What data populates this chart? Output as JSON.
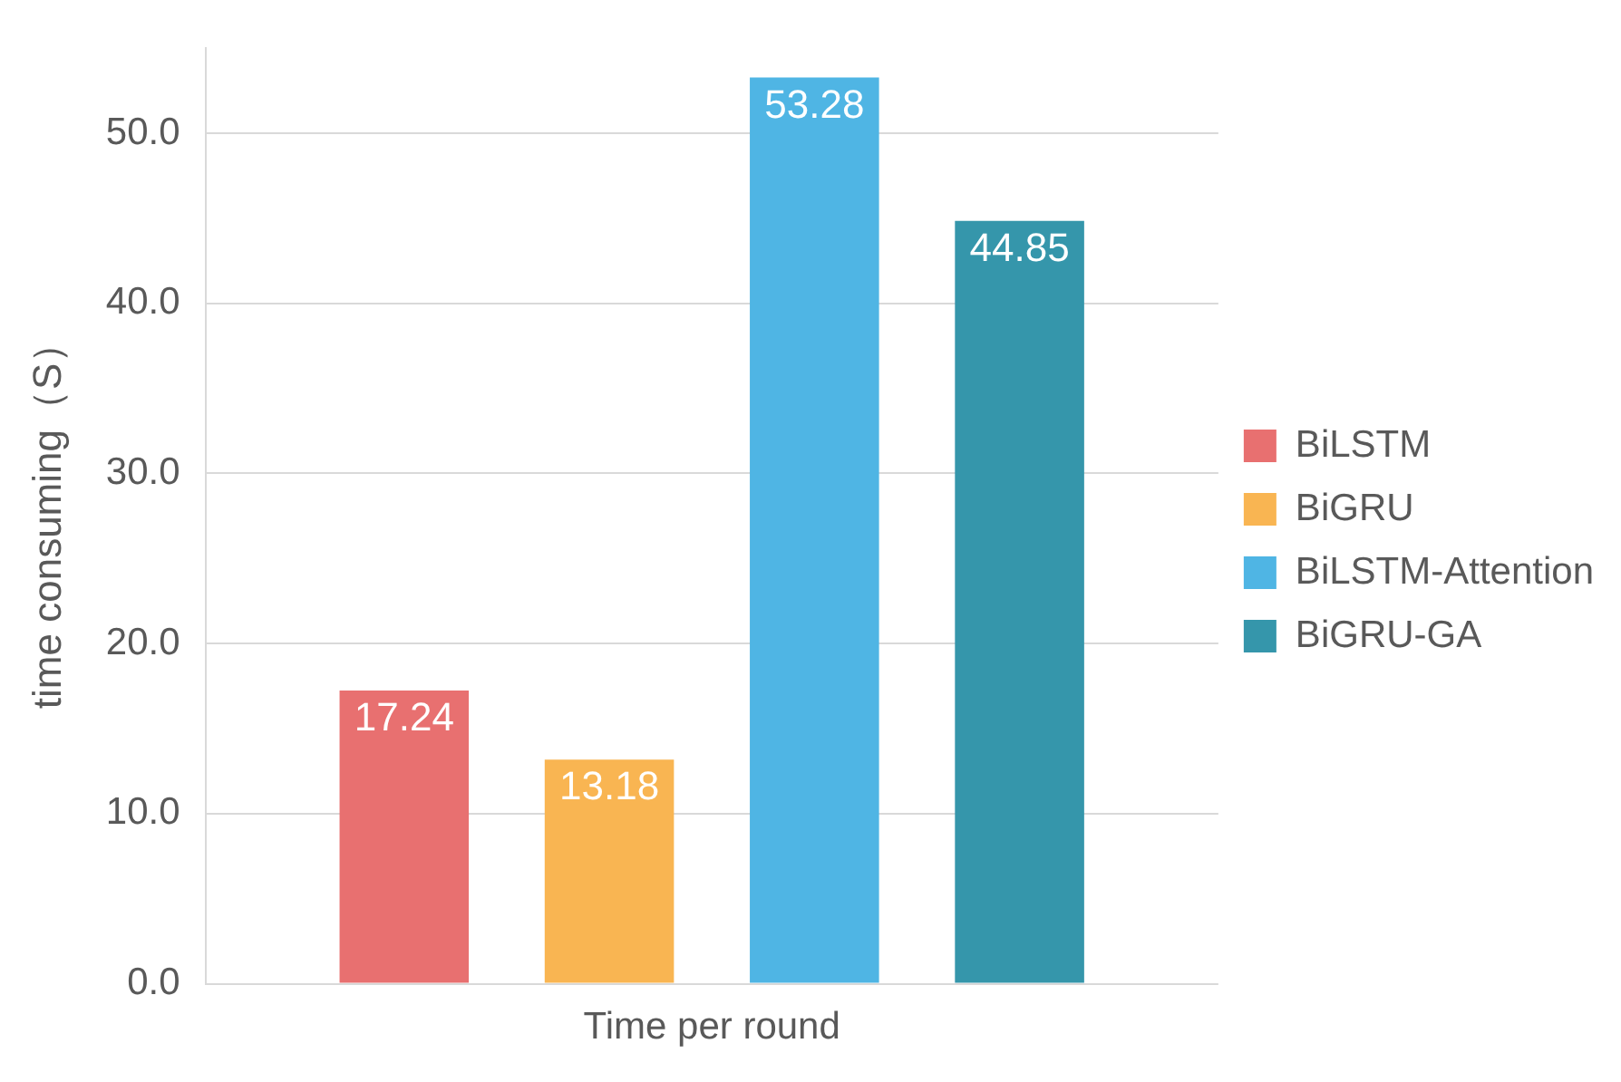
{
  "chart_data": {
    "type": "bar",
    "ylabel": "time consuming（S）",
    "categories": [
      "Time per round"
    ],
    "series": [
      {
        "name": "BiLSTM",
        "color": "#e87070",
        "values": [
          17.24
        ]
      },
      {
        "name": "BiGRU",
        "color": "#f9b552",
        "values": [
          13.18
        ]
      },
      {
        "name": "BiLSTM-Attention",
        "color": "#4fb5e4",
        "values": [
          53.28
        ]
      },
      {
        "name": "BiGRU-GA",
        "color": "#3596ab",
        "values": [
          44.85
        ]
      }
    ],
    "ylim": [
      0,
      55
    ],
    "yticks": [
      {
        "value": 0,
        "label": "0.0"
      },
      {
        "value": 10,
        "label": "10.0"
      },
      {
        "value": 20,
        "label": "20.0"
      },
      {
        "value": 30,
        "label": "30.0"
      },
      {
        "value": 40,
        "label": "40.0"
      },
      {
        "value": 50,
        "label": "50.0"
      }
    ],
    "grid": "y",
    "legend": "right",
    "data_labels": true
  }
}
